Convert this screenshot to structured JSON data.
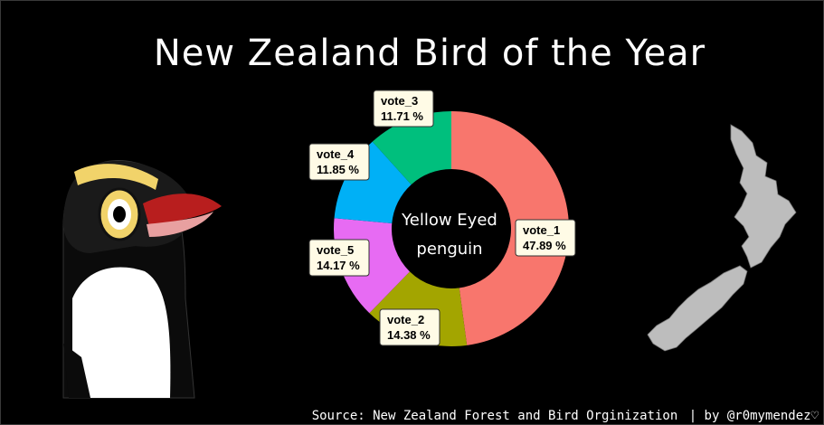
{
  "title": "New Zealand Bird of the Year",
  "caption": {
    "source": "Source: New Zealand Forest and Bird Orginization",
    "credit": "| by @r0mymendez♡"
  },
  "chart_data": {
    "type": "donut",
    "title": "New Zealand Bird of the Year",
    "center_label": [
      "Yellow Eyed",
      "penguin"
    ],
    "slices": [
      {
        "label": "vote_1",
        "value": 47.89,
        "value_label": "47.89 %",
        "color": "#F8766D"
      },
      {
        "label": "vote_2",
        "value": 14.38,
        "value_label": "14.38 %",
        "color": "#A3A500"
      },
      {
        "label": "vote_5",
        "value": 14.17,
        "value_label": "14.17 %",
        "color": "#E76BF3"
      },
      {
        "label": "vote_4",
        "value": 11.85,
        "value_label": "11.85 %",
        "color": "#00B0F6"
      },
      {
        "label": "vote_3",
        "value": 11.71,
        "value_label": "11.71 %",
        "color": "#00BF7D"
      }
    ]
  }
}
